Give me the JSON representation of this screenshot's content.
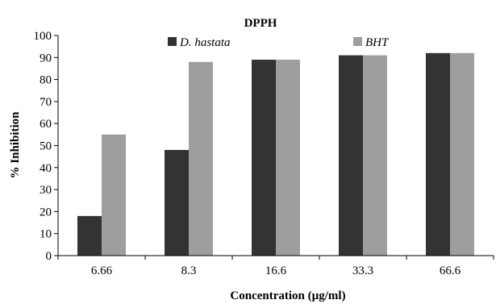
{
  "chart_data": {
    "type": "bar",
    "title": "DPPH",
    "xlabel": "Concentration (µg/ml)",
    "ylabel": "% Inhibition",
    "categories": [
      "6.66",
      "8.3",
      "16.6",
      "33.3",
      "66.6"
    ],
    "series": [
      {
        "name": "D. hastata",
        "values": [
          18,
          48,
          89,
          91,
          92
        ],
        "color": "#333333"
      },
      {
        "name": "BHT",
        "values": [
          55,
          88,
          89,
          91,
          92
        ],
        "color": "#9e9e9e"
      }
    ],
    "ylim": [
      0,
      100
    ],
    "yticks": [
      0,
      10,
      20,
      30,
      40,
      50,
      60,
      70,
      80,
      90,
      100
    ],
    "grid": false,
    "legend_position": "top"
  }
}
